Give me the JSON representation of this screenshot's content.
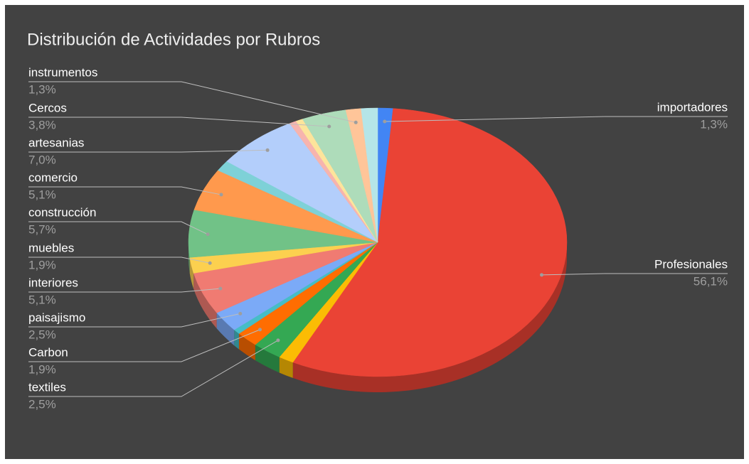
{
  "chart_data": {
    "type": "pie3d",
    "title": "Distribución de Actividades por Rubros",
    "categories": [
      "importadores",
      "Profesionales",
      null,
      "textiles",
      "Carbon",
      null,
      "paisajismo",
      "interiores",
      "muebles",
      "construcción",
      "comercio",
      null,
      "artesanias",
      null,
      null,
      "Cercos",
      "instrumentos",
      null
    ],
    "values": [
      1.3,
      56.1,
      1.3,
      2.5,
      1.9,
      0.6,
      2.5,
      5.1,
      1.9,
      5.7,
      5.1,
      1.3,
      7.0,
      0.6,
      0.6,
      3.8,
      1.3,
      1.4
    ],
    "value_labels": [
      "1,3%",
      "56,1%",
      null,
      "2,5%",
      "1,9%",
      null,
      "2,5%",
      "5,1%",
      "1,9%",
      "5,7%",
      "5,1%",
      null,
      "7,0%",
      null,
      null,
      "3,8%",
      "1,3%",
      null
    ],
    "colors": [
      "#4285f4",
      "#ea4335",
      "#fbbc04",
      "#34a853",
      "#ff6d01",
      "#46bdc6",
      "#7baaf7",
      "#f07b72",
      "#fcd04f",
      "#71c287",
      "#ff994d",
      "#7ed1d7",
      "#b3cefb",
      "#f7b4ae",
      "#fde49b",
      "#aedcba",
      "#ffc599",
      "#b5e5e8"
    ]
  }
}
